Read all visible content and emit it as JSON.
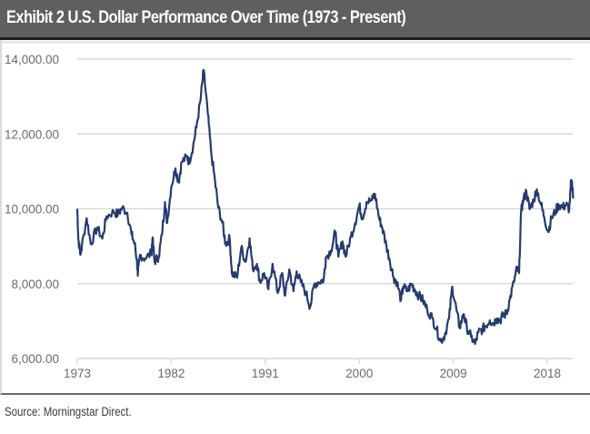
{
  "header": {
    "title": "Exhibit 2  U.S. Dollar Performance Over Time (1973 - Present)"
  },
  "footer": {
    "source": "Source: Morningstar Direct."
  },
  "colors": {
    "line": "#253a6e",
    "grid": "#d9d9d9",
    "title_bg": "#5f5f5f"
  },
  "chart_data": {
    "type": "line",
    "title": "Exhibit 2  U.S. Dollar Performance Over Time (1973 - Present)",
    "xlabel": "",
    "ylabel": "",
    "xlim": [
      1973,
      2020.6
    ],
    "ylim": [
      6000,
      14000
    ],
    "grid": "horizontal",
    "legend": "none",
    "y_ticks": [
      6000,
      8000,
      10000,
      12000,
      14000
    ],
    "y_tick_labels": [
      "6,000.00",
      "8,000.00",
      "10,000.00",
      "12,000.00",
      "14,000.00"
    ],
    "x_ticks": [
      1973,
      1982,
      1991,
      2000,
      2009,
      2018
    ],
    "x_tick_labels": [
      "1973",
      "1982",
      "1991",
      "2000",
      "2009",
      "2018"
    ],
    "series": [
      {
        "name": "U.S. Dollar",
        "x": [
          1973.0,
          1973.1,
          1973.3,
          1973.9,
          1974.3,
          1974.9,
          1975.4,
          1975.8,
          1976.5,
          1976.9,
          1977.3,
          1977.8,
          1978.2,
          1978.5,
          1978.7,
          1978.8,
          1979.0,
          1979.5,
          1980.1,
          1980.2,
          1980.4,
          1980.8,
          1981.1,
          1981.4,
          1981.6,
          1982.0,
          1982.4,
          1982.7,
          1983.0,
          1983.5,
          1983.7,
          1984.1,
          1984.4,
          1984.8,
          1985.1,
          1985.5,
          1985.8,
          1986.2,
          1986.5,
          1986.9,
          1987.2,
          1987.6,
          1987.8,
          1988.3,
          1988.7,
          1989.1,
          1989.5,
          1989.8,
          1990.2,
          1990.5,
          1990.9,
          1991.3,
          1991.7,
          1992.2,
          1992.6,
          1992.9,
          1993.3,
          1993.7,
          1994.0,
          1994.4,
          1994.9,
          1995.3,
          1995.7,
          1996.1,
          1996.6,
          1996.8,
          1997.3,
          1997.7,
          1998.0,
          1998.4,
          1998.7,
          1999.2,
          1999.6,
          2000.0,
          2000.3,
          2000.7,
          2001.2,
          2001.5,
          2001.9,
          2002.2,
          2002.6,
          2002.9,
          2003.3,
          2003.6,
          2004.0,
          2004.2,
          2004.6,
          2005.0,
          2005.3,
          2005.7,
          2006.1,
          2006.5,
          2007.0,
          2007.4,
          2007.8,
          2008.2,
          2008.6,
          2008.9,
          2009.3,
          2009.6,
          2010.0,
          2010.3,
          2010.7,
          2011.1,
          2011.4,
          2011.8,
          2012.1,
          2012.5,
          2012.8,
          2013.2,
          2013.5,
          2013.8,
          2014.1,
          2014.4,
          2014.8,
          2015.1,
          2015.3,
          2015.5,
          2015.7,
          2016.0,
          2016.3,
          2016.7,
          2017.0,
          2017.4,
          2017.7,
          2018.1,
          2018.4,
          2018.8,
          2019.1,
          2019.5,
          2019.8,
          2020.1,
          2020.3,
          2020.5
        ],
        "values": [
          10000,
          9200,
          8770,
          9750,
          9060,
          9500,
          9200,
          9800,
          9920,
          9850,
          10030,
          9890,
          9310,
          9060,
          8650,
          8210,
          8770,
          8670,
          8820,
          9210,
          8600,
          8720,
          9300,
          10180,
          9620,
          10590,
          11080,
          10710,
          11250,
          11390,
          11250,
          11690,
          12170,
          12900,
          13710,
          12540,
          11560,
          10710,
          10030,
          9620,
          9060,
          9210,
          8280,
          8160,
          8970,
          8580,
          9210,
          8410,
          8530,
          8040,
          8280,
          7850,
          8530,
          7750,
          8280,
          7680,
          8380,
          7800,
          8330,
          8040,
          7750,
          7380,
          7990,
          8040,
          8110,
          8700,
          8890,
          9380,
          8720,
          9130,
          8720,
          9260,
          9620,
          10090,
          9750,
          10180,
          10230,
          10400,
          9750,
          9500,
          9010,
          8650,
          8160,
          8040,
          7560,
          7920,
          7800,
          7990,
          7850,
          7680,
          7560,
          7310,
          7070,
          6780,
          6460,
          6630,
          7070,
          7920,
          7310,
          6830,
          7190,
          6830,
          6580,
          6390,
          6700,
          6780,
          6870,
          7020,
          6940,
          7070,
          7020,
          7170,
          7190,
          7560,
          8040,
          8410,
          8280,
          9940,
          10230,
          10470,
          9990,
          10230,
          10520,
          10110,
          9790,
          9380,
          9750,
          9940,
          10110,
          10040,
          10110,
          9990,
          10770,
          10350
        ]
      }
    ]
  }
}
